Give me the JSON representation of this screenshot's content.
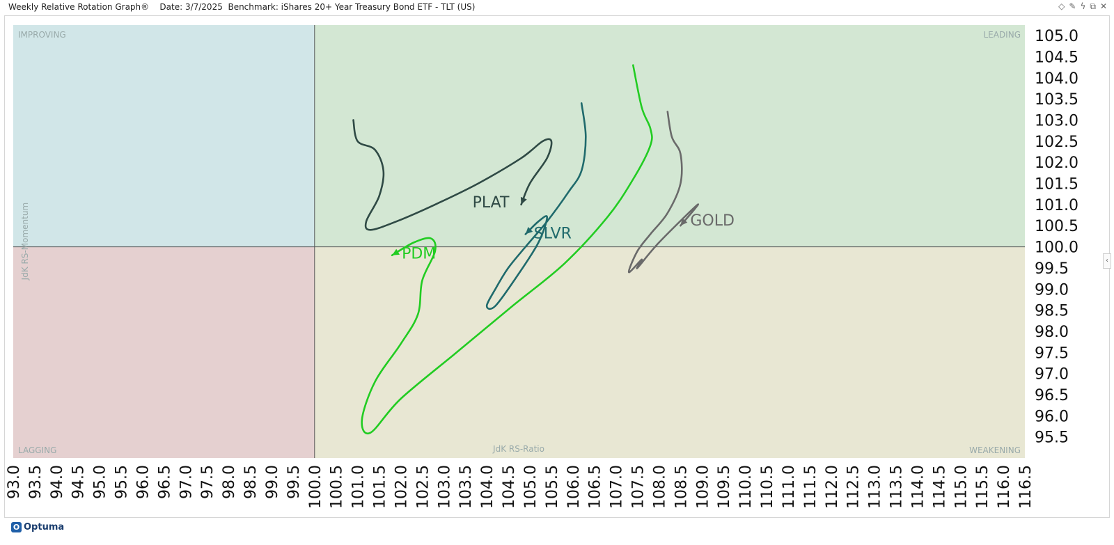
{
  "header": {
    "title": "Weekly Relative Rotation Graph®    Date: 3/7/2025  Benchmark: iShares 20+ Year Treasury Bond ETF - TLT (US)",
    "icons": [
      "diamond-icon",
      "pin-icon",
      "bolt-icon",
      "restore-icon",
      "close-icon"
    ]
  },
  "brand": {
    "name": "Optuma"
  },
  "colors": {
    "improving": "#d1e6e8",
    "leading": "#d3e7d3",
    "lagging": "#e5d0d0",
    "weakening": "#e8e7d3",
    "PLAT": "#2f4a45",
    "SLVR": "#1f6a6c",
    "PDM": "#22cc22",
    "GOLD": "#6a6a6a"
  },
  "chart_data": {
    "type": "scatter",
    "xlabel": "JdK RS-Ratio",
    "ylabel": "JdK RS-Momentum",
    "xlim": [
      93.0,
      116.5
    ],
    "ylim": [
      95.0,
      105.25
    ],
    "center": [
      100.0,
      100.0
    ],
    "quadrants": {
      "top_left": "IMPROVING",
      "top_right": "LEADING",
      "bottom_left": "LAGGING",
      "bottom_right": "WEAKENING"
    },
    "x_ticks": [
      "93.0",
      "93.5",
      "94.0",
      "94.5",
      "95.0",
      "95.5",
      "96.0",
      "96.5",
      "97.0",
      "97.5",
      "98.0",
      "98.5",
      "99.0",
      "99.5",
      "100.0",
      "100.5",
      "101.0",
      "101.5",
      "102.0",
      "102.5",
      "103.0",
      "103.5",
      "104.0",
      "104.5",
      "105.0",
      "105.5",
      "106.0",
      "106.5",
      "107.0",
      "107.5",
      "108.0",
      "108.5",
      "109.0",
      "109.5",
      "110.0",
      "110.5",
      "111.0",
      "111.5",
      "112.0",
      "112.5",
      "113.0",
      "113.5",
      "114.0",
      "114.5",
      "115.0",
      "115.5",
      "116.0",
      "116.5"
    ],
    "y_ticks": [
      "95.5",
      "96.0",
      "96.5",
      "97.0",
      "97.5",
      "98.0",
      "98.5",
      "99.0",
      "99.5",
      "100.0",
      "100.5",
      "101.0",
      "101.5",
      "102.0",
      "102.5",
      "103.0",
      "103.5",
      "104.0",
      "104.5",
      "105.0"
    ],
    "series": [
      {
        "name": "PLAT",
        "x": [
          100.9,
          101.0,
          101.4,
          101.6,
          101.5,
          101.2,
          101.3,
          101.9,
          102.8,
          103.8,
          104.8,
          105.3,
          105.5,
          105.4,
          105.0,
          104.8
        ],
        "y": [
          103.0,
          102.5,
          102.3,
          101.8,
          101.2,
          100.6,
          100.4,
          100.6,
          101.0,
          101.5,
          102.1,
          102.5,
          102.5,
          102.1,
          101.5,
          101.0
        ]
      },
      {
        "name": "SLVR",
        "x": [
          106.2,
          106.3,
          106.2,
          105.9,
          105.4,
          104.9,
          104.5,
          104.2,
          104.0,
          104.2,
          104.7,
          105.2,
          105.4,
          105.2,
          104.9
        ],
        "y": [
          103.4,
          102.6,
          101.8,
          101.3,
          100.6,
          100.0,
          99.5,
          99.0,
          98.6,
          98.6,
          99.3,
          100.1,
          100.7,
          100.6,
          100.3
        ]
      },
      {
        "name": "PDM",
        "x": [
          107.4,
          107.6,
          107.8,
          107.8,
          107.4,
          106.8,
          105.8,
          104.6,
          103.3,
          102.0,
          101.3,
          101.1,
          101.4,
          102.0,
          102.4,
          102.5,
          102.8,
          102.7,
          102.3,
          101.8
        ],
        "y": [
          104.3,
          103.3,
          102.8,
          102.4,
          101.6,
          100.7,
          99.6,
          98.6,
          97.5,
          96.4,
          95.6,
          95.9,
          96.8,
          97.7,
          98.4,
          99.2,
          99.9,
          100.2,
          100.1,
          99.8
        ]
      },
      {
        "name": "GOLD",
        "x": [
          108.2,
          108.3,
          108.5,
          108.5,
          108.2,
          107.8,
          107.5,
          107.3,
          107.6,
          107.5,
          108.0,
          108.9,
          108.5
        ],
        "y": [
          103.2,
          102.6,
          102.2,
          101.5,
          100.8,
          100.3,
          99.9,
          99.4,
          99.7,
          99.5,
          100.1,
          101.0,
          100.5
        ]
      }
    ]
  }
}
